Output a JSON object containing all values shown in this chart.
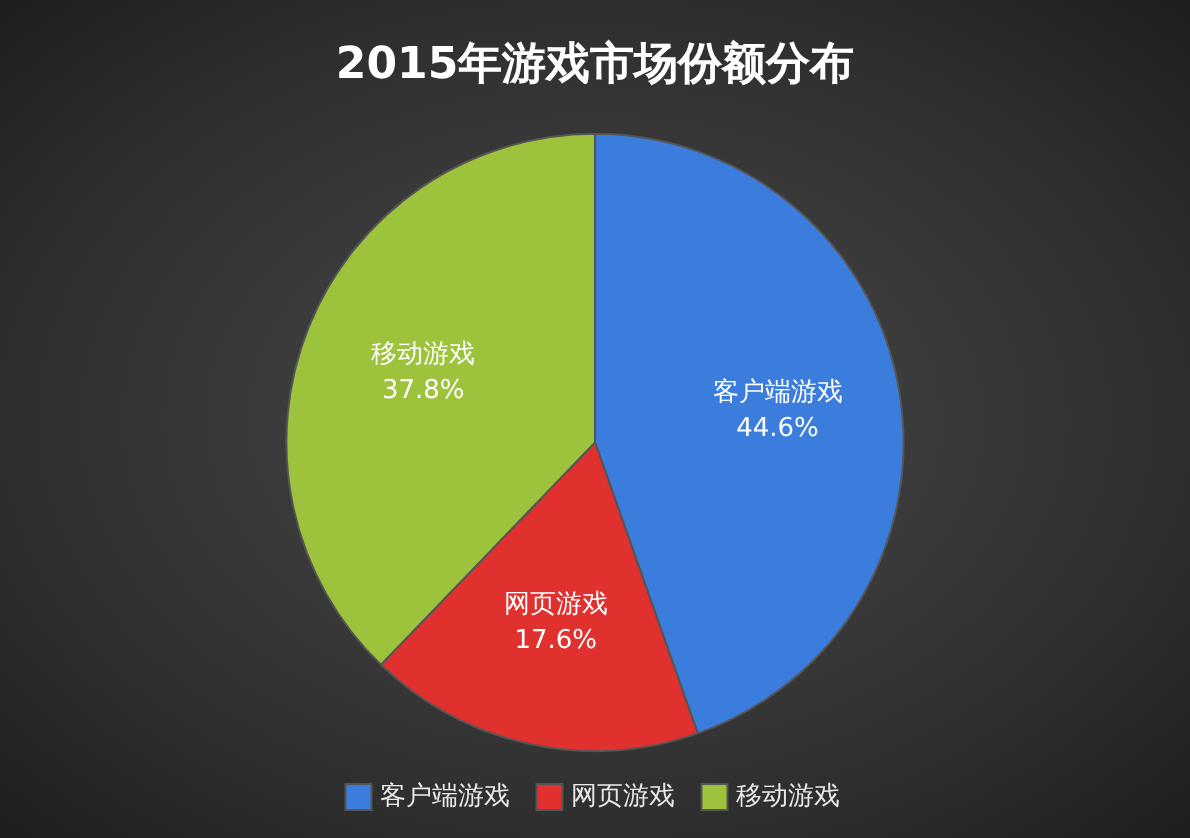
{
  "chart_data": {
    "type": "pie",
    "title": "2015年游戏市场份额分布",
    "categories": [
      "客户端游戏",
      "网页游戏",
      "移动游戏"
    ],
    "values": [
      44.6,
      17.6,
      37.8
    ],
    "colors": [
      "#3b7ddd",
      "#e0312f",
      "#9cc33b"
    ],
    "value_labels": [
      "44.6%",
      "17.6%",
      "37.8%"
    ],
    "legend": "bottom"
  }
}
